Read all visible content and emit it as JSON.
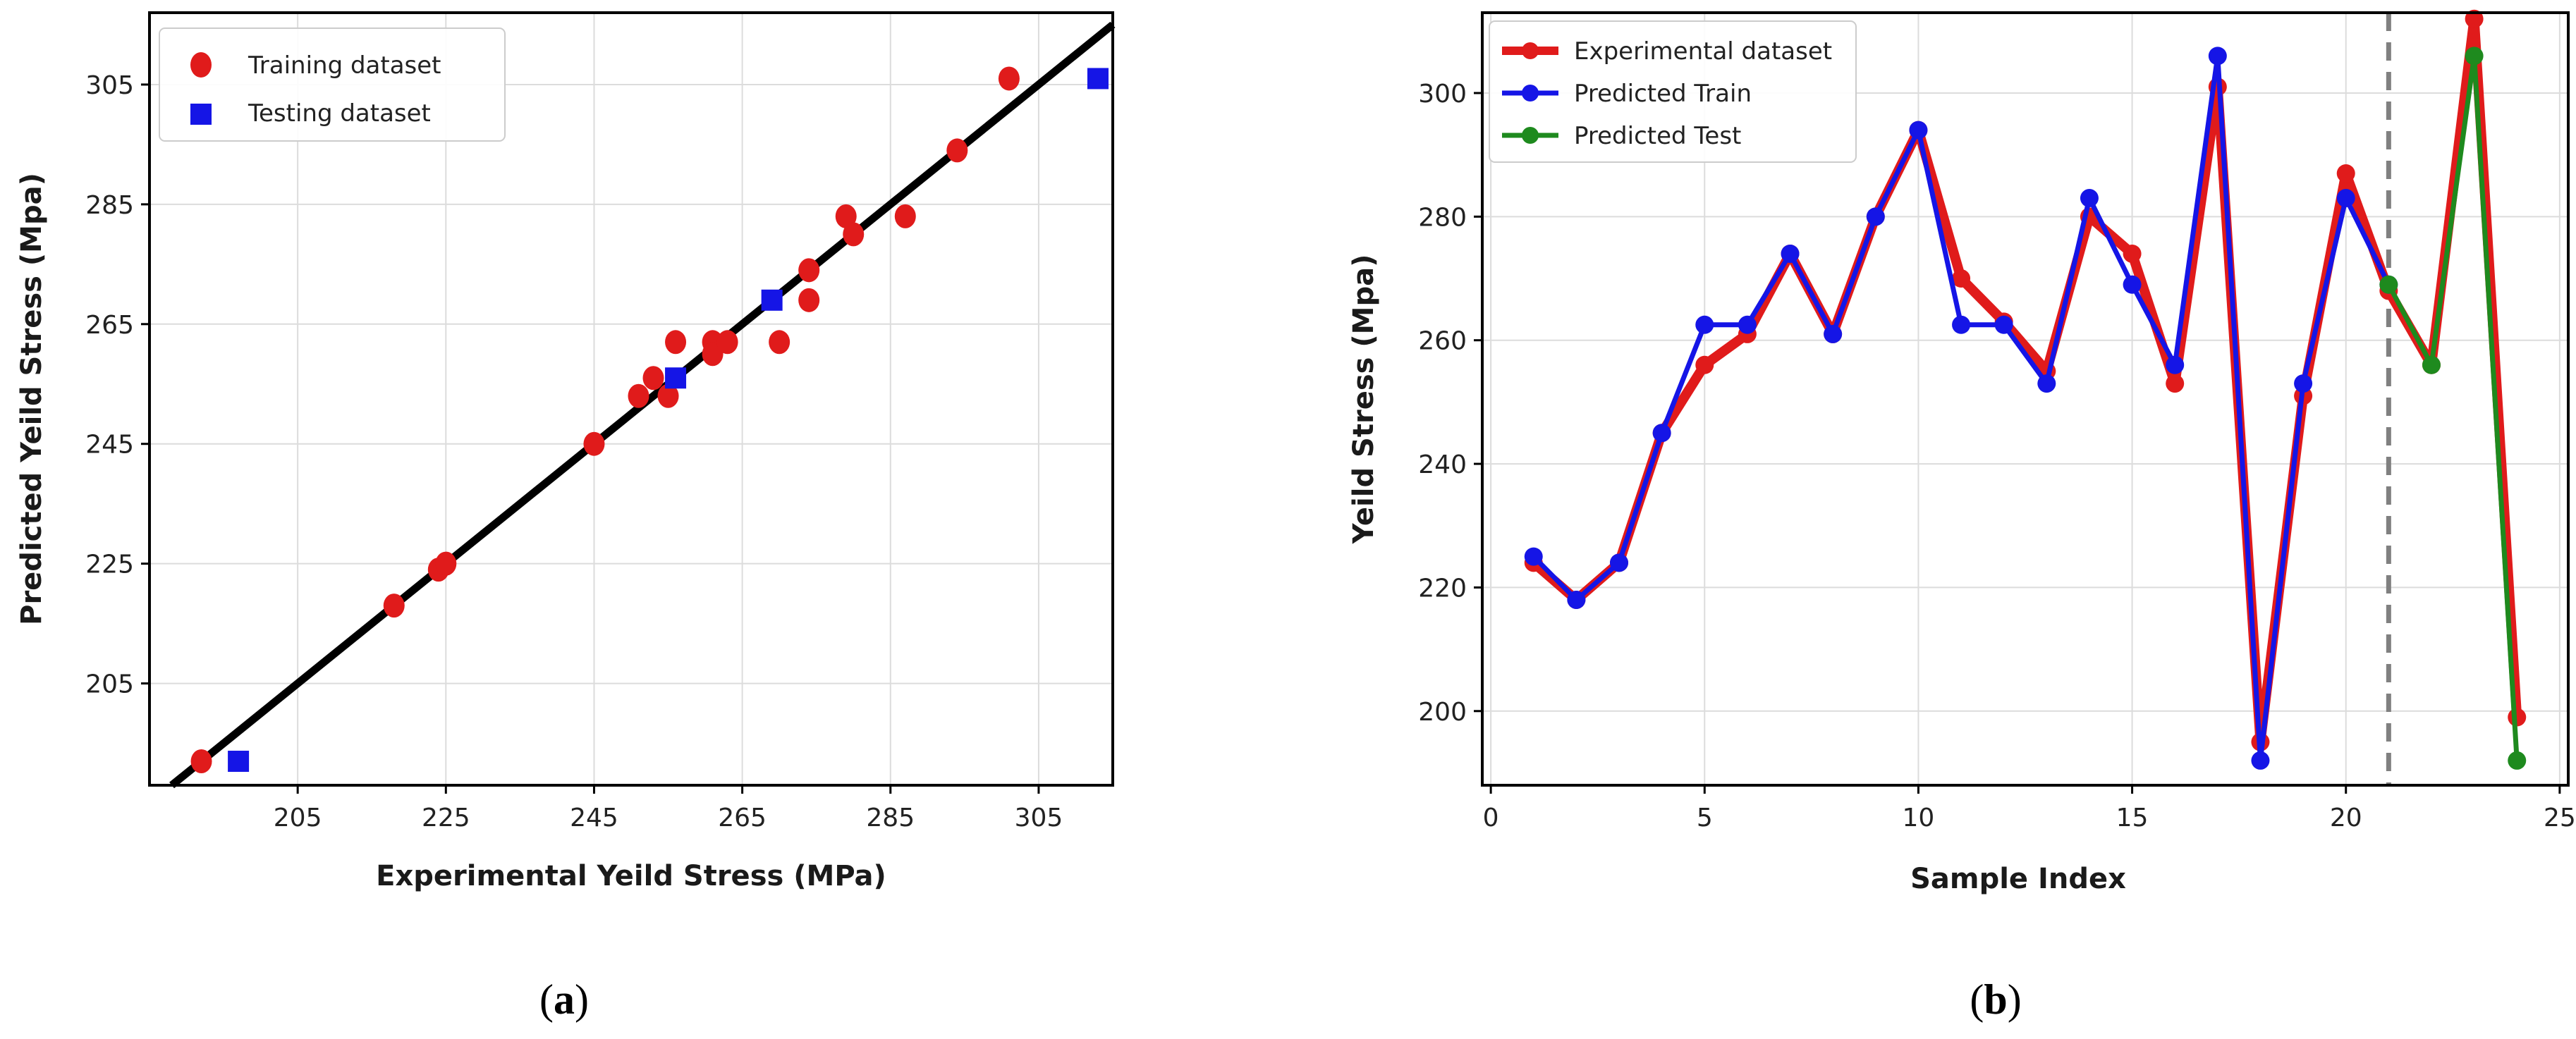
{
  "chart_data": [
    {
      "type": "scatter",
      "panel_label": "a",
      "title": "",
      "xlabel": "Experimental Yeild Stress (MPa)",
      "ylabel": "Predicted Yeild Stress (Mpa)",
      "xlim": [
        185,
        315
      ],
      "ylim": [
        188,
        317
      ],
      "xticks": [
        205,
        225,
        245,
        265,
        285,
        305
      ],
      "yticks": [
        205,
        225,
        245,
        265,
        285,
        305
      ],
      "grid": true,
      "legend_position": "top-left",
      "reference_line": {
        "name": "y = x",
        "color": "#000000"
      },
      "series": [
        {
          "name": "Training dataset",
          "marker": "circle",
          "color": "#e01b1b",
          "points": [
            [
              192,
              192
            ],
            [
              218,
              218
            ],
            [
              224,
              224
            ],
            [
              225,
              225
            ],
            [
              245,
              245
            ],
            [
              251,
              253
            ],
            [
              253,
              256
            ],
            [
              255,
              253
            ],
            [
              256,
              262
            ],
            [
              261,
              262
            ],
            [
              261,
              260
            ],
            [
              263,
              262
            ],
            [
              270,
              262
            ],
            [
              274,
              269
            ],
            [
              274,
              274
            ],
            [
              279,
              283
            ],
            [
              280,
              280
            ],
            [
              287,
              283
            ],
            [
              294,
              294
            ],
            [
              301,
              306
            ]
          ]
        },
        {
          "name": "Testing dataset",
          "marker": "square",
          "color": "#1515e6",
          "points": [
            [
              197,
              192
            ],
            [
              256,
              256
            ],
            [
              269,
              269
            ],
            [
              313,
              306
            ]
          ]
        }
      ]
    },
    {
      "type": "line",
      "panel_label": "b",
      "title": "",
      "xlabel": "Sample Index",
      "ylabel": "Yeild Stress (Mpa)",
      "xlim": [
        -0.2,
        25.2
      ],
      "ylim": [
        188,
        313
      ],
      "xticks": [
        0,
        5,
        10,
        15,
        20,
        25
      ],
      "yticks": [
        200,
        220,
        240,
        260,
        280,
        300
      ],
      "grid": true,
      "legend_position": "top-left",
      "split_line_x": 21,
      "series": [
        {
          "name": "Experimental dataset",
          "color": "#e01b1b",
          "x": [
            1,
            2,
            3,
            4,
            5,
            6,
            7,
            8,
            9,
            10,
            11,
            12,
            13,
            14,
            15,
            16,
            17,
            18,
            19,
            20,
            21,
            22,
            23,
            24
          ],
          "values": [
            224,
            218,
            224,
            245,
            256,
            261,
            274,
            261,
            280,
            294,
            270,
            263,
            255,
            280,
            274,
            253,
            301,
            195,
            251,
            287,
            268,
            256,
            312,
            199
          ]
        },
        {
          "name": "Predicted Train",
          "color": "#1515e6",
          "x": [
            1,
            2,
            3,
            4,
            5,
            6,
            7,
            8,
            9,
            10,
            11,
            12,
            13,
            14,
            15,
            16,
            17,
            18,
            19,
            20,
            21
          ],
          "values": [
            225,
            218,
            224,
            245,
            262.5,
            262.5,
            274,
            261,
            280,
            294,
            262.5,
            262.5,
            253,
            283,
            269,
            256,
            306,
            192,
            253,
            283,
            269
          ]
        },
        {
          "name": "Predicted Test",
          "color": "#1e8a1e",
          "x": [
            21,
            22,
            23,
            24
          ],
          "values": [
            269,
            256,
            306,
            192
          ]
        }
      ]
    }
  ],
  "captions": {
    "a": {
      "paren_open": "(",
      "letter": "a",
      "paren_close": ")"
    },
    "b": {
      "paren_open": "(",
      "letter": "b",
      "paren_close": ")"
    }
  }
}
